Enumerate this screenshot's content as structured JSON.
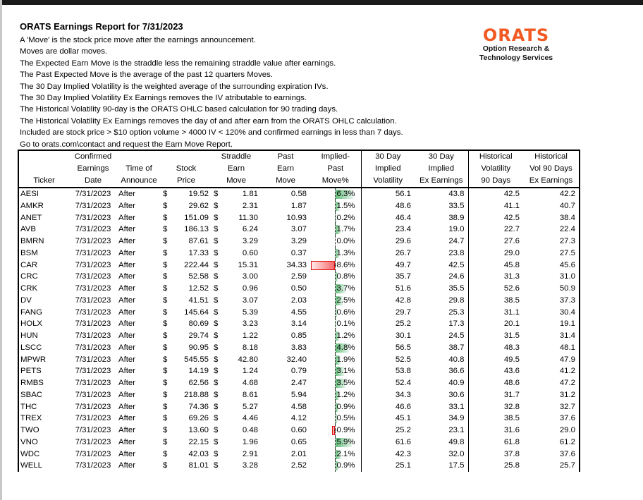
{
  "report": {
    "title": "ORATS Earnings Report for 7/31/2023",
    "notes": [
      "A 'Move' is the stock price move after the earnings announcement.",
      "Moves are dollar moves.",
      "The Expected Earn Move is the straddle less the remaining straddle value after earnings.",
      "The Past Expected Move is the average of the past 12 quarters Moves.",
      "The 30 Day Implied Volatility is the weighted average of the surrounding expiration IVs.",
      "The 30 Day Implied Volatility Ex Earnings removes the IV atributable to earnings.",
      "The Historical Volatility 90-day is the ORATS OHLC based calculation for 90 trading days.",
      "The Historical Volatility Ex Earnings removes the day of and after earn from the ORATS OHLC calculation.",
      "Included are stock price > $10 option volume > 4000 IV < 120% and confirmed earnings in less than 7 days.",
      "Go to orats.com\\contact and request the Earn Move Report."
    ]
  },
  "logo": {
    "mark": "ORATS",
    "line1": "Option Research &",
    "line2": "Technology Services",
    "color": "#f15a22"
  },
  "table": {
    "currency_symbol": "$",
    "headers": [
      [
        "",
        "",
        "Ticker"
      ],
      [
        "Confirmed",
        "Earnings",
        "Date"
      ],
      [
        "",
        "Time of",
        "Announce"
      ],
      [
        "",
        "Stock",
        "Price"
      ],
      [
        "Straddle",
        "Earn",
        "Move"
      ],
      [
        "Past",
        "Earn",
        "Move"
      ],
      [
        "Implied-",
        "Past",
        "Move%"
      ],
      [
        "30 Day",
        "Implied",
        "Volatility"
      ],
      [
        "30 Day",
        "Implied",
        "Ex Earnings"
      ],
      [
        "Historical",
        "Volatility",
        "90 Days"
      ],
      [
        "Historical",
        "Vol 90 Days",
        "Ex Earnings"
      ]
    ],
    "rows": [
      {
        "ticker": "AESI",
        "date": "7/31/2023",
        "time": "After",
        "price": "19.52",
        "straddle": "1.81",
        "past": "0.58",
        "implied_pct": 6.3,
        "implied_label": "6.3%",
        "iv30": "56.1",
        "iv30_ex": "43.8",
        "hv90": "42.5",
        "hv90_ex": "42.2"
      },
      {
        "ticker": "AMKR",
        "date": "7/31/2023",
        "time": "After",
        "price": "29.62",
        "straddle": "2.31",
        "past": "1.87",
        "implied_pct": 1.5,
        "implied_label": "1.5%",
        "iv30": "48.6",
        "iv30_ex": "33.5",
        "hv90": "41.1",
        "hv90_ex": "40.7"
      },
      {
        "ticker": "ANET",
        "date": "7/31/2023",
        "time": "After",
        "price": "151.09",
        "straddle": "11.30",
        "past": "10.93",
        "implied_pct": 0.2,
        "implied_label": "0.2%",
        "iv30": "46.4",
        "iv30_ex": "38.9",
        "hv90": "42.5",
        "hv90_ex": "38.4"
      },
      {
        "ticker": "AVB",
        "date": "7/31/2023",
        "time": "After",
        "price": "186.13",
        "straddle": "6.24",
        "past": "3.07",
        "implied_pct": 1.7,
        "implied_label": "1.7%",
        "iv30": "23.4",
        "iv30_ex": "19.0",
        "hv90": "22.7",
        "hv90_ex": "22.4"
      },
      {
        "ticker": "BMRN",
        "date": "7/31/2023",
        "time": "After",
        "price": "87.61",
        "straddle": "3.29",
        "past": "3.29",
        "implied_pct": 0.0,
        "implied_label": "0.0%",
        "iv30": "29.6",
        "iv30_ex": "24.7",
        "hv90": "27.6",
        "hv90_ex": "27.3"
      },
      {
        "ticker": "BSM",
        "date": "7/31/2023",
        "time": "After",
        "price": "17.33",
        "straddle": "0.60",
        "past": "0.37",
        "implied_pct": 1.3,
        "implied_label": "1.3%",
        "iv30": "26.7",
        "iv30_ex": "23.8",
        "hv90": "29.0",
        "hv90_ex": "27.5"
      },
      {
        "ticker": "CAR",
        "date": "7/31/2023",
        "time": "After",
        "price": "222.44",
        "straddle": "15.31",
        "past": "34.33",
        "implied_pct": -8.6,
        "implied_label": "-8.6%",
        "iv30": "49.7",
        "iv30_ex": "42.5",
        "hv90": "45.8",
        "hv90_ex": "45.6"
      },
      {
        "ticker": "CRC",
        "date": "7/31/2023",
        "time": "After",
        "price": "52.58",
        "straddle": "3.00",
        "past": "2.59",
        "implied_pct": 0.8,
        "implied_label": "0.8%",
        "iv30": "35.7",
        "iv30_ex": "24.6",
        "hv90": "31.3",
        "hv90_ex": "31.0"
      },
      {
        "ticker": "CRK",
        "date": "7/31/2023",
        "time": "After",
        "price": "12.52",
        "straddle": "0.96",
        "past": "0.50",
        "implied_pct": 3.7,
        "implied_label": "3.7%",
        "iv30": "51.6",
        "iv30_ex": "35.5",
        "hv90": "52.6",
        "hv90_ex": "50.9"
      },
      {
        "ticker": "DV",
        "date": "7/31/2023",
        "time": "After",
        "price": "41.51",
        "straddle": "3.07",
        "past": "2.03",
        "implied_pct": 2.5,
        "implied_label": "2.5%",
        "iv30": "42.8",
        "iv30_ex": "29.8",
        "hv90": "38.5",
        "hv90_ex": "37.3"
      },
      {
        "ticker": "FANG",
        "date": "7/31/2023",
        "time": "After",
        "price": "145.64",
        "straddle": "5.39",
        "past": "4.55",
        "implied_pct": 0.6,
        "implied_label": "0.6%",
        "iv30": "29.7",
        "iv30_ex": "25.3",
        "hv90": "31.1",
        "hv90_ex": "30.4"
      },
      {
        "ticker": "HOLX",
        "date": "7/31/2023",
        "time": "After",
        "price": "80.69",
        "straddle": "3.23",
        "past": "3.14",
        "implied_pct": 0.1,
        "implied_label": "0.1%",
        "iv30": "25.2",
        "iv30_ex": "17.3",
        "hv90": "20.1",
        "hv90_ex": "19.1"
      },
      {
        "ticker": "HUN",
        "date": "7/31/2023",
        "time": "After",
        "price": "29.74",
        "straddle": "1.22",
        "past": "0.85",
        "implied_pct": 1.2,
        "implied_label": "1.2%",
        "iv30": "30.1",
        "iv30_ex": "24.5",
        "hv90": "31.5",
        "hv90_ex": "31.4"
      },
      {
        "ticker": "LSCC",
        "date": "7/31/2023",
        "time": "After",
        "price": "90.95",
        "straddle": "8.18",
        "past": "3.83",
        "implied_pct": 4.8,
        "implied_label": "4.8%",
        "iv30": "56.5",
        "iv30_ex": "38.7",
        "hv90": "48.3",
        "hv90_ex": "48.1"
      },
      {
        "ticker": "MPWR",
        "date": "7/31/2023",
        "time": "After",
        "price": "545.55",
        "straddle": "42.80",
        "past": "32.40",
        "implied_pct": 1.9,
        "implied_label": "1.9%",
        "iv30": "52.5",
        "iv30_ex": "40.8",
        "hv90": "49.5",
        "hv90_ex": "47.9"
      },
      {
        "ticker": "PETS",
        "date": "7/31/2023",
        "time": "After",
        "price": "14.19",
        "straddle": "1.24",
        "past": "0.79",
        "implied_pct": 3.1,
        "implied_label": "3.1%",
        "iv30": "53.8",
        "iv30_ex": "36.6",
        "hv90": "43.6",
        "hv90_ex": "41.2"
      },
      {
        "ticker": "RMBS",
        "date": "7/31/2023",
        "time": "After",
        "price": "62.56",
        "straddle": "4.68",
        "past": "2.47",
        "implied_pct": 3.5,
        "implied_label": "3.5%",
        "iv30": "52.4",
        "iv30_ex": "40.9",
        "hv90": "48.6",
        "hv90_ex": "47.2"
      },
      {
        "ticker": "SBAC",
        "date": "7/31/2023",
        "time": "After",
        "price": "218.88",
        "straddle": "8.61",
        "past": "5.94",
        "implied_pct": 1.2,
        "implied_label": "1.2%",
        "iv30": "34.3",
        "iv30_ex": "30.6",
        "hv90": "31.7",
        "hv90_ex": "31.2"
      },
      {
        "ticker": "THC",
        "date": "7/31/2023",
        "time": "After",
        "price": "74.36",
        "straddle": "5.27",
        "past": "4.58",
        "implied_pct": 0.9,
        "implied_label": "0.9%",
        "iv30": "46.6",
        "iv30_ex": "33.1",
        "hv90": "32.8",
        "hv90_ex": "32.7"
      },
      {
        "ticker": "TREX",
        "date": "7/31/2023",
        "time": "After",
        "price": "69.26",
        "straddle": "4.46",
        "past": "4.12",
        "implied_pct": 0.5,
        "implied_label": "0.5%",
        "iv30": "45.1",
        "iv30_ex": "34.9",
        "hv90": "38.5",
        "hv90_ex": "37.6"
      },
      {
        "ticker": "TWO",
        "date": "7/31/2023",
        "time": "After",
        "price": "13.60",
        "straddle": "0.48",
        "past": "0.60",
        "implied_pct": -0.9,
        "implied_label": "-0.9%",
        "iv30": "25.2",
        "iv30_ex": "23.1",
        "hv90": "31.6",
        "hv90_ex": "29.0"
      },
      {
        "ticker": "VNO",
        "date": "7/31/2023",
        "time": "After",
        "price": "22.15",
        "straddle": "1.96",
        "past": "0.65",
        "implied_pct": 5.9,
        "implied_label": "5.9%",
        "iv30": "61.6",
        "iv30_ex": "49.8",
        "hv90": "61.8",
        "hv90_ex": "61.2"
      },
      {
        "ticker": "WDC",
        "date": "7/31/2023",
        "time": "After",
        "price": "42.03",
        "straddle": "2.91",
        "past": "2.01",
        "implied_pct": 2.1,
        "implied_label": "2.1%",
        "iv30": "42.3",
        "iv30_ex": "32.0",
        "hv90": "37.8",
        "hv90_ex": "37.6"
      },
      {
        "ticker": "WELL",
        "date": "7/31/2023",
        "time": "After",
        "price": "81.01",
        "straddle": "3.28",
        "past": "2.52",
        "implied_pct": 0.9,
        "implied_label": "0.9%",
        "iv30": "25.1",
        "iv30_ex": "17.5",
        "hv90": "25.8",
        "hv90_ex": "25.7"
      }
    ]
  }
}
